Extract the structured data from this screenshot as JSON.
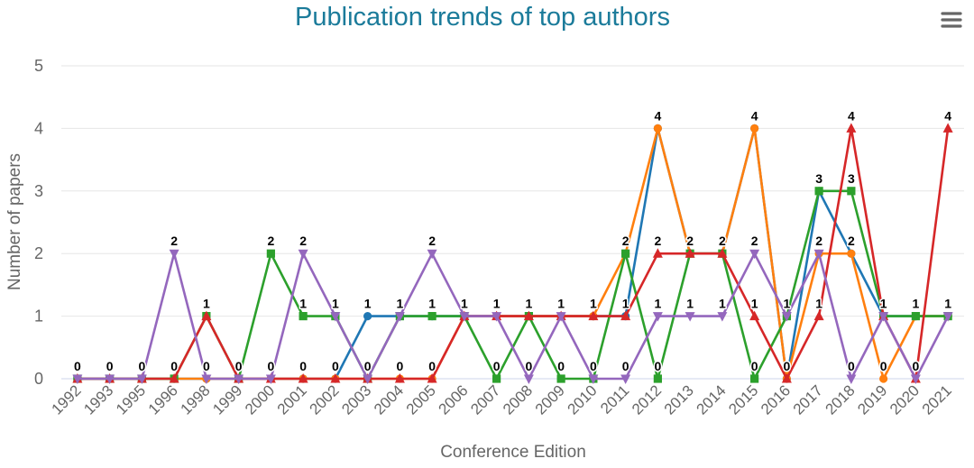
{
  "menu_icon": "hamburger-menu-icon",
  "chart_data": {
    "type": "line",
    "title": "Publication trends of top authors",
    "xlabel": "Conference Edition",
    "ylabel": "Number of papers",
    "ylim": [
      0,
      5
    ],
    "yticks": [
      0,
      1,
      2,
      3,
      4,
      5
    ],
    "grid": true,
    "legend": "none",
    "data_labels": true,
    "categories": [
      "1992",
      "1993",
      "1995",
      "1996",
      "1998",
      "1999",
      "2000",
      "2001",
      "2002",
      "2003",
      "2004",
      "2005",
      "2006",
      "2007",
      "2008",
      "2009",
      "2010",
      "2011",
      "2012",
      "2013",
      "2014",
      "2015",
      "2016",
      "2017",
      "2018",
      "2019",
      "2020",
      "2021"
    ],
    "series": [
      {
        "color": "#1f77b4",
        "marker": "circle",
        "values": [
          0,
          0,
          0,
          0,
          0,
          0,
          0,
          0,
          0,
          1,
          1,
          1,
          1,
          1,
          1,
          1,
          1,
          1,
          4,
          2,
          2,
          4,
          0,
          3,
          2,
          1,
          1,
          1
        ]
      },
      {
        "color": "#ff7f0e",
        "marker": "circle",
        "values": [
          0,
          0,
          0,
          0,
          0,
          0,
          0,
          0,
          0,
          0,
          0,
          0,
          1,
          1,
          1,
          1,
          1,
          2,
          4,
          2,
          2,
          4,
          0,
          2,
          2,
          0,
          1,
          1
        ]
      },
      {
        "color": "#2ca02c",
        "marker": "square",
        "values": [
          0,
          0,
          0,
          0,
          1,
          0,
          2,
          1,
          1,
          0,
          1,
          1,
          1,
          0,
          1,
          0,
          0,
          2,
          0,
          2,
          2,
          0,
          1,
          3,
          3,
          1,
          1,
          1
        ]
      },
      {
        "color": "#d62728",
        "marker": "triangle-up",
        "values": [
          0,
          0,
          0,
          0,
          1,
          0,
          0,
          0,
          0,
          0,
          0,
          0,
          1,
          1,
          1,
          1,
          1,
          1,
          2,
          2,
          2,
          1,
          0,
          1,
          4,
          1,
          0,
          4
        ]
      },
      {
        "color": "#9467bd",
        "marker": "triangle-down",
        "values": [
          0,
          0,
          0,
          2,
          0,
          0,
          0,
          2,
          1,
          0,
          1,
          2,
          1,
          1,
          0,
          1,
          0,
          0,
          1,
          1,
          1,
          2,
          1,
          2,
          0,
          1,
          0,
          1
        ]
      }
    ]
  }
}
